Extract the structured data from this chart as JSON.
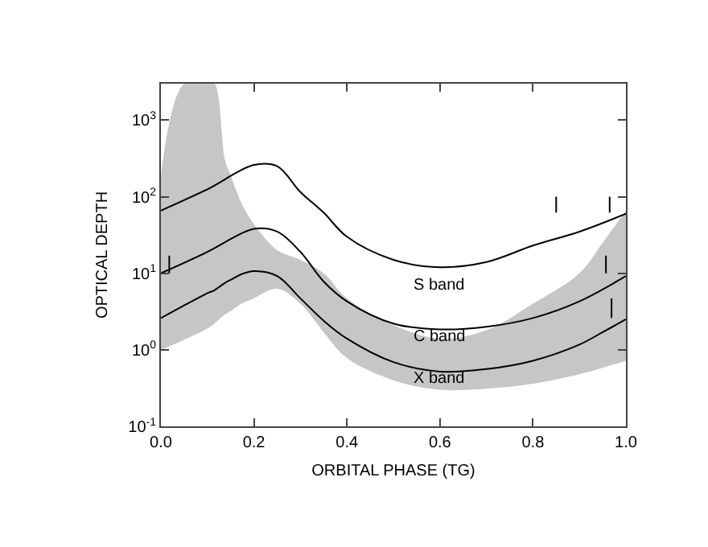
{
  "chart_data": {
    "type": "line",
    "xlabel": "ORBITAL PHASE (TG)",
    "ylabel": "OPTICAL DEPTH",
    "log": "y",
    "marker": "none",
    "line_style": "solid",
    "xlim": [
      0,
      1
    ],
    "xticks": [
      {
        "value": 0,
        "label": "0.0"
      },
      0.2,
      0.4,
      0.6,
      0.8,
      {
        "value": 1,
        "label": "1.0"
      }
    ],
    "ylim": [
      0.1,
      3000
    ],
    "yticks": [
      {
        "value": 0.1,
        "label": "10$^{-1}$"
      },
      {
        "value": 1,
        "label": "10$^{0}$"
      },
      {
        "value": 10,
        "label": "10$^{1}$"
      },
      {
        "value": 100,
        "label": "10$^{2}$"
      },
      {
        "value": 1000,
        "label": "10$^{3}$"
      }
    ],
    "series": [
      {
        "color": "#000000",
        "x": [
          0,
          0.05,
          0.1,
          0.115,
          0.138,
          0.15,
          0.173,
          0.2,
          0.25,
          0.3,
          0.35,
          0.4,
          0.5,
          0.6,
          0.7,
          0.8,
          0.9,
          0.95,
          1.0
        ],
        "values": [
          2.6,
          3.8,
          5.5,
          6.0,
          7.5,
          8.2,
          9.7,
          10.7,
          9.2,
          4.7,
          2.4,
          1.4,
          0.69,
          0.52,
          0.56,
          0.72,
          1.17,
          1.7,
          2.5
        ],
        "lower": [
          1.0,
          1.35,
          1.9,
          2.2,
          2.9,
          3.2,
          4.0,
          4.7,
          6.3,
          4.0,
          1.7,
          0.78,
          0.4,
          0.3,
          0.31,
          0.36,
          0.48,
          0.58,
          0.72
        ],
        "upper": [
          190,
          3000,
          3000,
          3000,
          300,
          190,
          83,
          44,
          20,
          15,
          10,
          4.7,
          2.1,
          1.4,
          1.8,
          4,
          10,
          25,
          66
        ]
      },
      {
        "color": "#000000",
        "x": [
          0,
          0.1,
          0.2,
          0.25,
          0.3,
          0.35,
          0.4,
          0.5,
          0.6,
          0.7,
          0.8,
          0.9,
          1.0
        ],
        "values": [
          10,
          19,
          38,
          35,
          19,
          7.8,
          4.3,
          2.2,
          1.85,
          2.0,
          2.6,
          4.3,
          9.2
        ]
      },
      {
        "color": "#000000",
        "x": [
          0,
          0.1,
          0.2,
          0.25,
          0.3,
          0.35,
          0.4,
          0.5,
          0.6,
          0.7,
          0.8,
          0.9,
          1.0
        ],
        "values": [
          66,
          125,
          260,
          250,
          115,
          62,
          30,
          15,
          12,
          14,
          23,
          35,
          60
        ]
      },
      {
        "color": "#000000",
        "x": [
          0.018,
          0.018
        ],
        "values": [
          10,
          17
        ]
      },
      {
        "color": "#000000",
        "x": [
          0.85,
          0.85
        ],
        "values": [
          62,
          100
        ]
      },
      {
        "color": "#000000",
        "x": [
          0.965,
          0.965
        ],
        "values": [
          62,
          100
        ]
      },
      {
        "color": "#000000",
        "x": [
          0.957,
          0.957
        ],
        "values": [
          10,
          17
        ]
      },
      {
        "color": "#000000",
        "x": [
          0.969,
          0.969
        ],
        "values": [
          2.6,
          4.7
        ]
      }
    ],
    "annotations": [
      "S band",
      "C band",
      "X band"
    ]
  }
}
